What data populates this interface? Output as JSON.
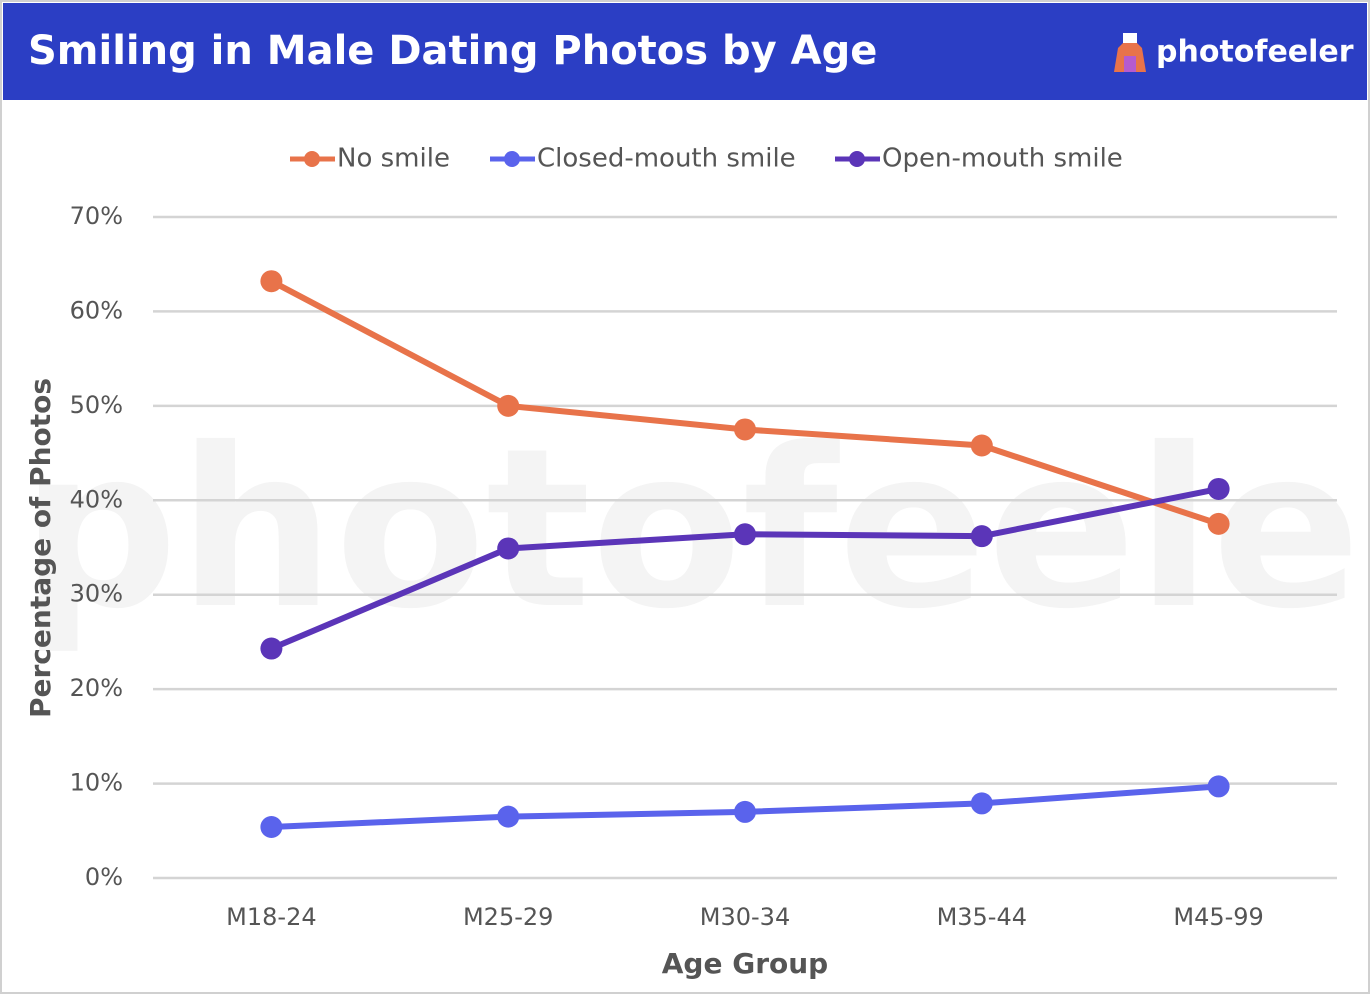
{
  "chart_data": {
    "type": "line",
    "title": "Smiling in Male Dating Photos by Age",
    "brand": "photofeeler",
    "watermark": "photofeeler",
    "x_label": "Age Group",
    "y_label": "Percentage of Photos",
    "categories": [
      "M18-24",
      "M25-29",
      "M30-34",
      "M35-44",
      "M45-99"
    ],
    "series": [
      {
        "name": "No smile",
        "color": "#e8734a",
        "values": [
          63.2,
          50.0,
          47.5,
          45.8,
          37.5
        ]
      },
      {
        "name": "Closed-mouth smile",
        "color": "#5a63ec",
        "values": [
          5.4,
          6.5,
          7.0,
          7.9,
          9.7
        ]
      },
      {
        "name": "Open-mouth smile",
        "color": "#5b35b8",
        "values": [
          24.3,
          34.9,
          36.4,
          36.2,
          41.2
        ]
      }
    ],
    "ylim": [
      0,
      70
    ],
    "yticks": [
      {
        "value": 0,
        "label": "0%"
      },
      {
        "value": 10,
        "label": "10%"
      },
      {
        "value": 20,
        "label": "20%"
      },
      {
        "value": 30,
        "label": "30%"
      },
      {
        "value": 40,
        "label": "40%"
      },
      {
        "value": 50,
        "label": "50%"
      },
      {
        "value": 60,
        "label": "60%"
      },
      {
        "value": 70,
        "label": "70%"
      }
    ],
    "grid": true,
    "legend": "top"
  }
}
